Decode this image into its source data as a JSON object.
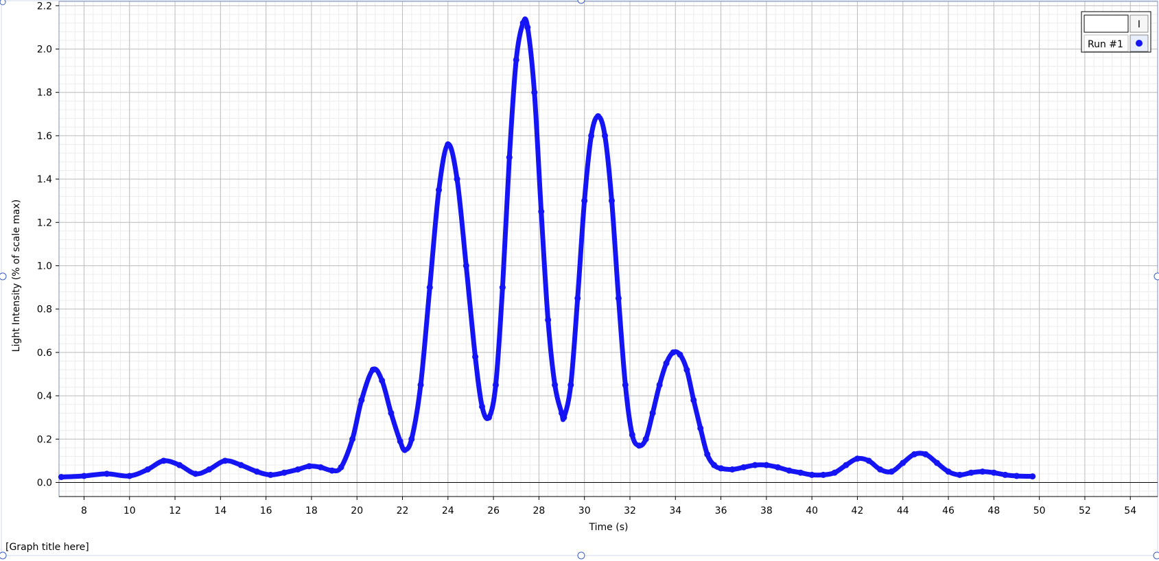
{
  "graph_title": "[Graph title here]",
  "legend": {
    "header_box_text": "",
    "header_button_label": "I",
    "run_label": "Run #1"
  },
  "colors": {
    "series": "#1414f5",
    "grid_major": "#bdbdbd",
    "grid_minor": "#ececec",
    "frame": "#9fb0d8",
    "handle": "#3a5cc0"
  },
  "chart_data": {
    "type": "scatter",
    "title": "",
    "xlabel": "Time (s)",
    "ylabel": "Light Intensity (% of scale max)",
    "xlim": [
      6.9,
      55.2
    ],
    "ylim": [
      -0.065,
      2.22
    ],
    "x_ticks": [
      8,
      10,
      12,
      14,
      16,
      18,
      20,
      22,
      24,
      26,
      28,
      30,
      32,
      34,
      36,
      38,
      40,
      42,
      44,
      46,
      48,
      50,
      52,
      54
    ],
    "y_ticks": [
      "0.0",
      "0.2",
      "0.4",
      "0.6",
      "0.8",
      "1.0",
      "1.2",
      "1.4",
      "1.6",
      "1.8",
      "2.0",
      "2.2"
    ],
    "grid": true,
    "legend_position": "top-right",
    "series": [
      {
        "name": "Run #1",
        "x": [
          7.0,
          8.0,
          9.0,
          10.0,
          10.8,
          11.5,
          12.2,
          12.9,
          13.5,
          14.2,
          14.9,
          15.6,
          16.2,
          16.8,
          17.4,
          17.9,
          18.4,
          18.9,
          19.3,
          19.8,
          20.2,
          20.7,
          21.1,
          21.5,
          21.9,
          22.1,
          22.4,
          22.8,
          23.2,
          23.6,
          24.0,
          24.4,
          24.8,
          25.2,
          25.5,
          25.8,
          26.1,
          26.4,
          26.7,
          27.0,
          27.3,
          27.5,
          27.8,
          28.1,
          28.4,
          28.7,
          29.0,
          29.1,
          29.4,
          29.7,
          30.0,
          30.3,
          30.6,
          30.9,
          31.2,
          31.5,
          31.8,
          32.1,
          32.4,
          32.7,
          33.0,
          33.3,
          33.6,
          33.9,
          34.2,
          34.5,
          34.8,
          35.1,
          35.4,
          35.7,
          36.0,
          36.5,
          37.0,
          37.5,
          38.0,
          38.5,
          39.0,
          39.5,
          40.0,
          40.5,
          41.0,
          41.5,
          42.0,
          42.5,
          43.0,
          43.5,
          44.0,
          44.5,
          45.0,
          45.5,
          46.0,
          46.5,
          47.0,
          47.5,
          48.0,
          48.5,
          49.0,
          49.7
        ],
        "y": [
          0.025,
          0.03,
          0.04,
          0.03,
          0.06,
          0.1,
          0.08,
          0.04,
          0.06,
          0.1,
          0.08,
          0.05,
          0.035,
          0.045,
          0.06,
          0.075,
          0.07,
          0.055,
          0.07,
          0.2,
          0.38,
          0.52,
          0.47,
          0.32,
          0.19,
          0.15,
          0.2,
          0.45,
          0.9,
          1.35,
          1.56,
          1.4,
          1.0,
          0.58,
          0.35,
          0.3,
          0.45,
          0.9,
          1.5,
          1.95,
          2.12,
          2.1,
          1.8,
          1.25,
          0.75,
          0.45,
          0.32,
          0.3,
          0.45,
          0.85,
          1.3,
          1.6,
          1.69,
          1.6,
          1.3,
          0.85,
          0.45,
          0.22,
          0.17,
          0.2,
          0.32,
          0.45,
          0.55,
          0.6,
          0.59,
          0.52,
          0.38,
          0.25,
          0.13,
          0.08,
          0.065,
          0.06,
          0.07,
          0.08,
          0.08,
          0.07,
          0.055,
          0.045,
          0.035,
          0.035,
          0.045,
          0.08,
          0.11,
          0.1,
          0.06,
          0.05,
          0.09,
          0.13,
          0.13,
          0.09,
          0.05,
          0.035,
          0.045,
          0.05,
          0.045,
          0.035,
          0.03,
          0.028
        ]
      }
    ]
  }
}
